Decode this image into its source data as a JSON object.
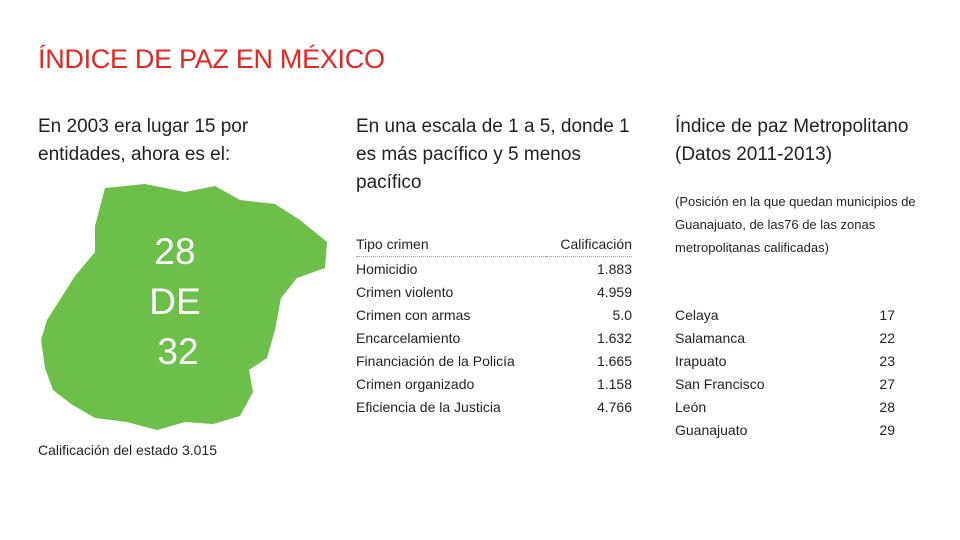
{
  "title": "ÍNDICE DE PAZ EN MÉXICO",
  "col1": {
    "heading": "En 2003 era lugar 15 por entidades, ahora es el:",
    "map_lines": [
      "28",
      "DE",
      "32"
    ],
    "state_score": "Calificación del estado 3.015",
    "map_color": "#6cc04a"
  },
  "col2": {
    "heading": "En una escala de 1 a 5, donde 1 es más pacífico y 5 menos pacífico",
    "table_headers": [
      "Tipo crimen",
      "Calificación"
    ],
    "rows": [
      {
        "label": "Homicidio",
        "value": "1.883"
      },
      {
        "label": "Crimen violento",
        "value": "4.959"
      },
      {
        "label": "Crimen con armas",
        "value": "5.0"
      },
      {
        "label": "Encarcelamiento",
        "value": "1.632"
      },
      {
        "label": "Financiación de la Policía",
        "value": "1.665"
      },
      {
        "label": "Crimen organizado",
        "value": "1.158"
      },
      {
        "label": "Eficiencia de la Justicia",
        "value": "4.766"
      }
    ]
  },
  "col3": {
    "heading": "Índice de paz Metropolitano (Datos 2011-2013)",
    "note": "(Posición en la que quedan municipios de Guanajuato, de las76 de las zonas metropolitanas calificadas)",
    "rows": [
      {
        "city": "Celaya",
        "rank": "17"
      },
      {
        "city": "Salamanca",
        "rank": "22"
      },
      {
        "city": "Irapuato",
        "rank": "23"
      },
      {
        "city": "San Francisco",
        "rank": "27"
      },
      {
        "city": "León",
        "rank": "28"
      },
      {
        "city": "Guanajuato",
        "rank": "29"
      }
    ]
  },
  "colors": {
    "title": "#e52521",
    "map": "#6cc04a",
    "text": "#231f20"
  }
}
